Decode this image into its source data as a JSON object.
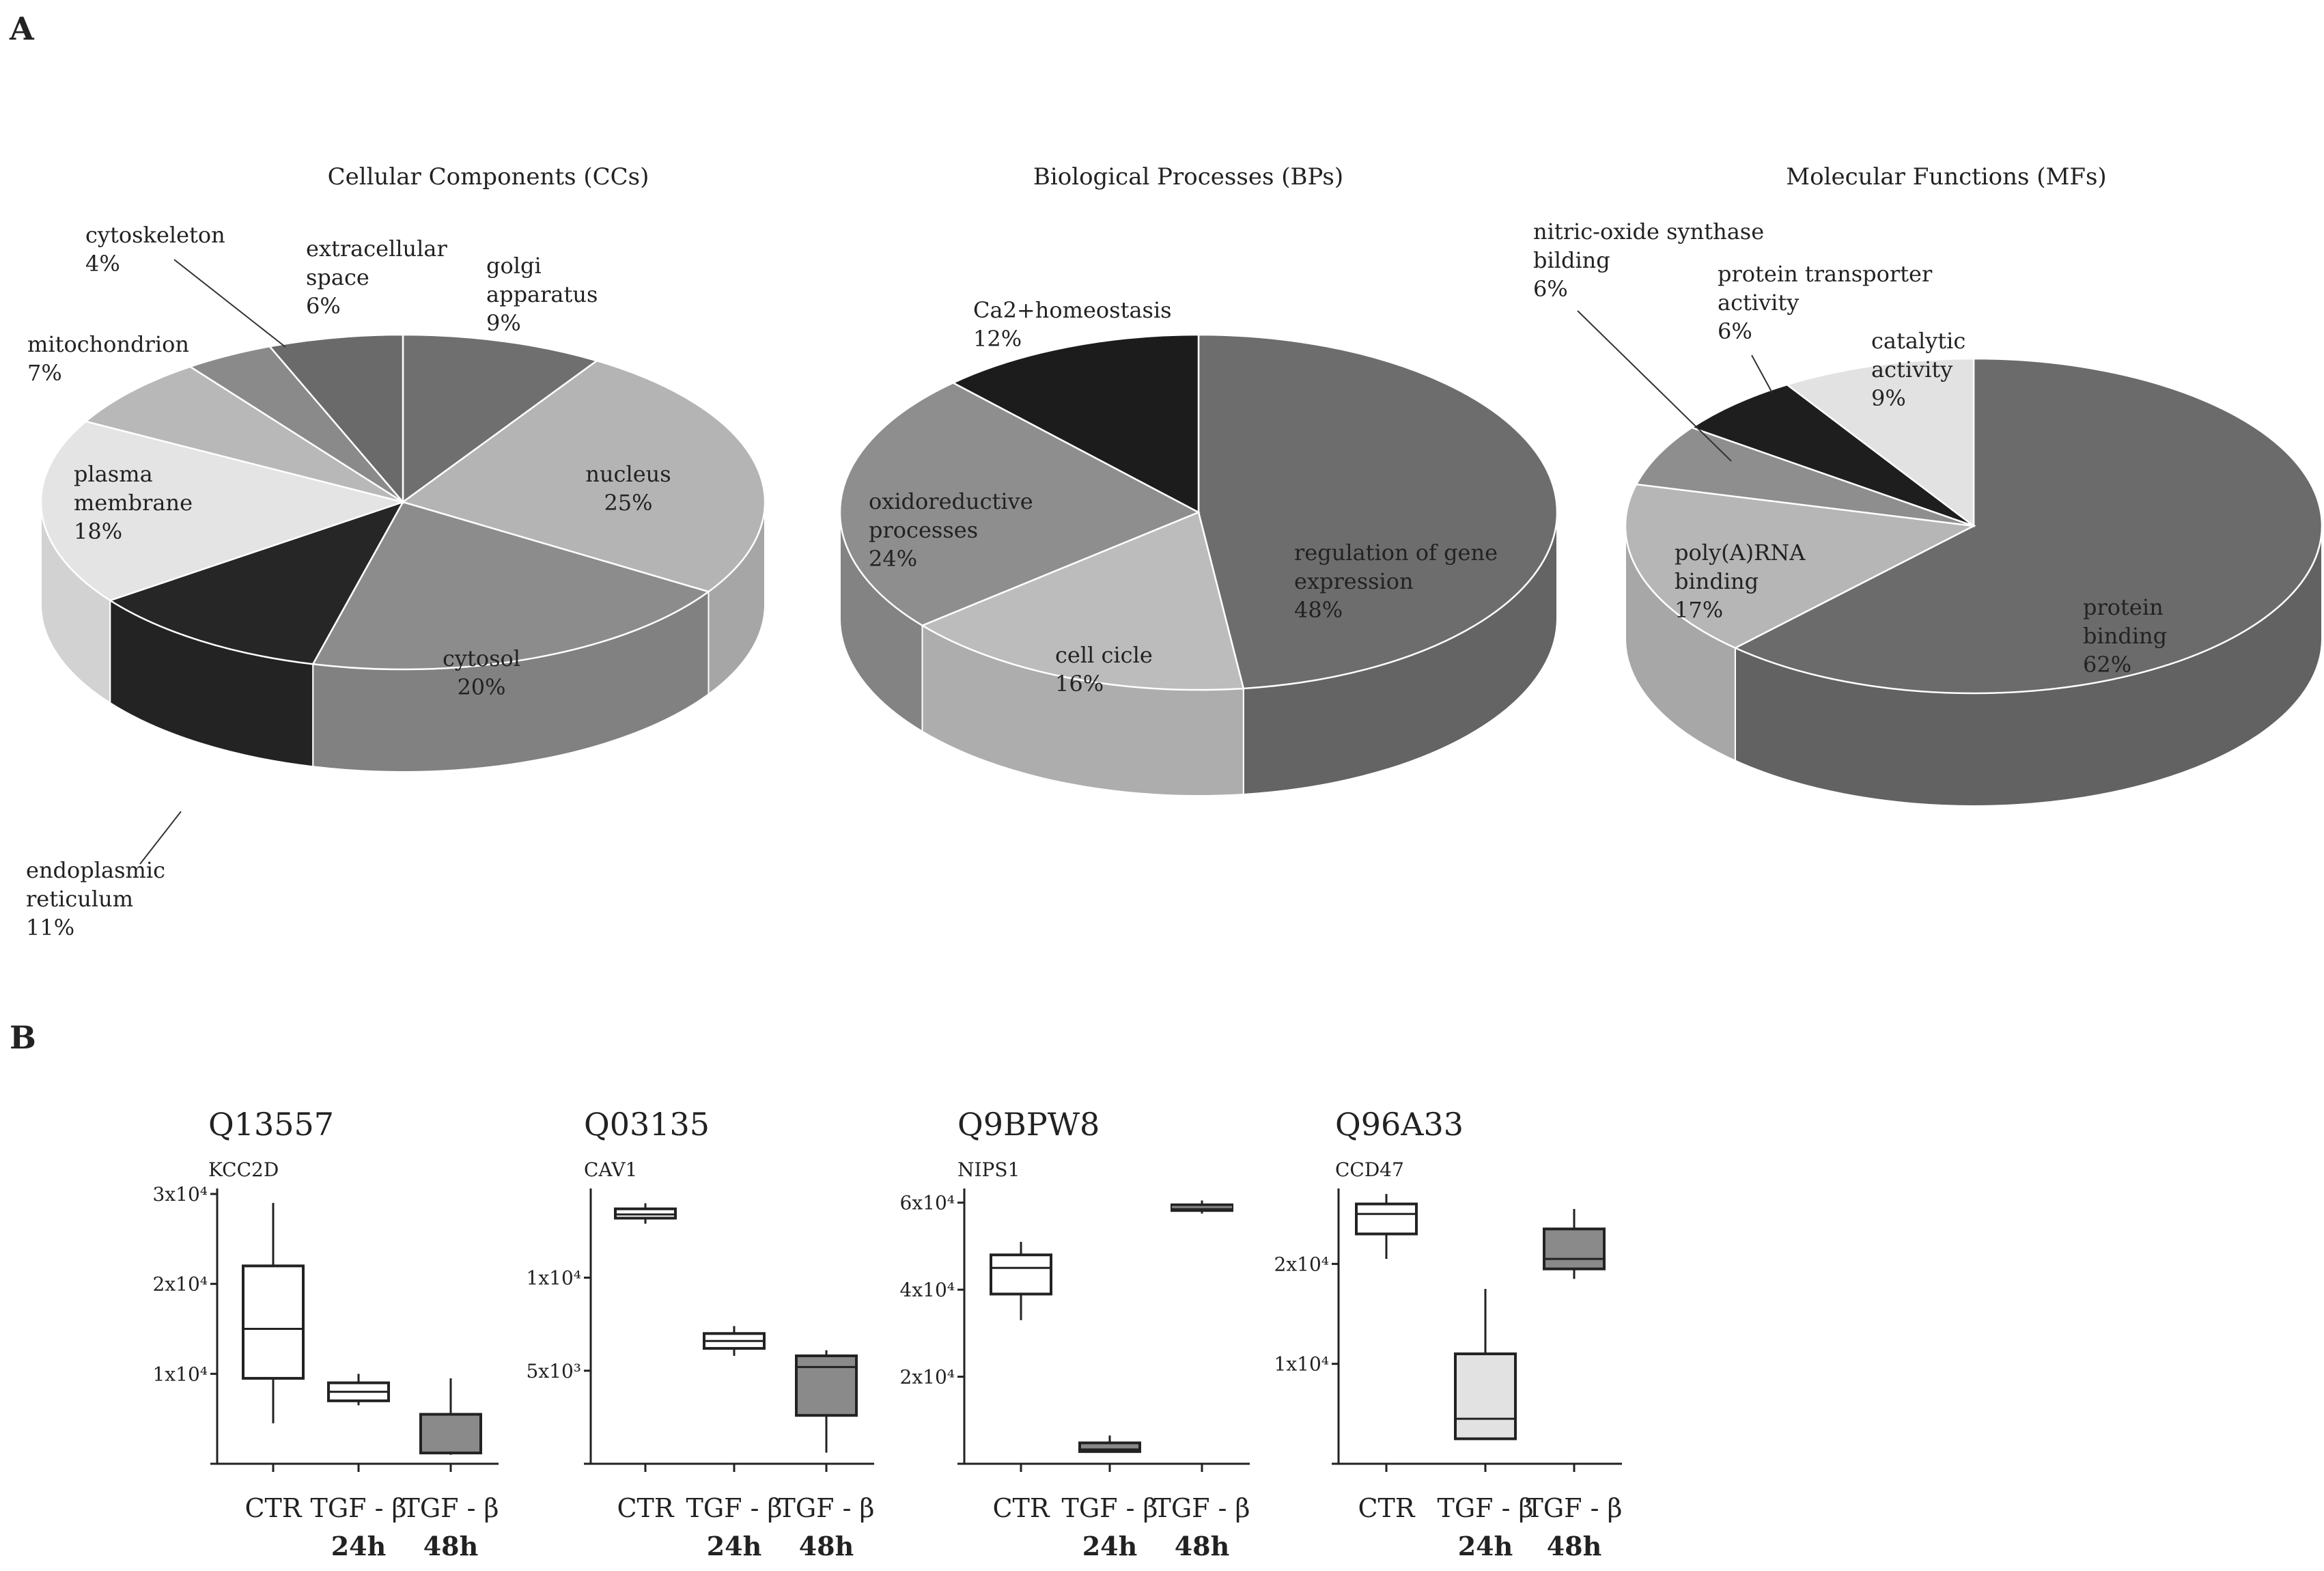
{
  "panel_labels": {
    "a": "A",
    "b": "B"
  },
  "chart_data": [
    {
      "type": "pie",
      "title": "Cellular Components (CCs)",
      "slices": [
        {
          "label": [
            "golgi",
            "apparatus"
          ],
          "pct": "9%",
          "value": 9,
          "color": "#6f6f6f"
        },
        {
          "label": [
            "nucleus"
          ],
          "pct": "25%",
          "value": 25,
          "color": "#b4b4b4"
        },
        {
          "label": [
            "cytosol"
          ],
          "pct": "20%",
          "value": 20,
          "color": "#8c8c8c"
        },
        {
          "label": [
            "endoplasmic",
            "reticulum"
          ],
          "pct": "11%",
          "value": 11,
          "color": "#262626"
        },
        {
          "label": [
            "plasma",
            "membrane"
          ],
          "pct": "18%",
          "value": 18,
          "color": "#e4e4e4"
        },
        {
          "label": [
            "mitochondrion"
          ],
          "pct": "7%",
          "value": 7,
          "color": "#b8b8b8"
        },
        {
          "label": [
            "cytoskeleton"
          ],
          "pct": "4%",
          "value": 4,
          "color": "#8a8a8a"
        },
        {
          "label": [
            "extracellular",
            "space"
          ],
          "pct": "6%",
          "value": 6,
          "color": "#6a6a6a"
        }
      ]
    },
    {
      "type": "pie",
      "title": "Biological Processes (BPs)",
      "slices": [
        {
          "label": [
            "regulation of gene",
            "expression"
          ],
          "pct": "48%",
          "value": 48,
          "color": "#6d6d6d"
        },
        {
          "label": [
            "cell cicle"
          ],
          "pct": "16%",
          "value": 16,
          "color": "#bcbcbc"
        },
        {
          "label": [
            "oxidoreductive",
            "processes"
          ],
          "pct": "24%",
          "value": 24,
          "color": "#8e8e8e"
        },
        {
          "label": [
            "Ca2+homeostasis"
          ],
          "pct": "12%",
          "value": 12,
          "color": "#1c1c1c"
        }
      ]
    },
    {
      "type": "pie",
      "title": "Molecular Functions (MFs)",
      "slices": [
        {
          "label": [
            "protein",
            "binding"
          ],
          "pct": "62%",
          "value": 62,
          "color": "#6b6b6b"
        },
        {
          "label": [
            "poly(A)RNA",
            "binding"
          ],
          "pct": "17%",
          "value": 17,
          "color": "#b6b6b6"
        },
        {
          "label": [
            "nitric-oxide synthase",
            "bilding"
          ],
          "pct": "6%",
          "value": 6,
          "color": "#8e8e8e"
        },
        {
          "label": [
            "protein transporter",
            "activity"
          ],
          "pct": "6%",
          "value": 6,
          "color": "#1e1e1e"
        },
        {
          "label": [
            "catalytic",
            "activity"
          ],
          "pct": "9%",
          "value": 9,
          "color": "#e2e2e2"
        }
      ]
    },
    {
      "type": "box",
      "title": "Q13557",
      "subtitle": "KCC2D",
      "ylim": [
        0,
        30000
      ],
      "yticks": [
        {
          "v": 10000,
          "label": "1x10⁴"
        },
        {
          "v": 20000,
          "label": "2x10⁴"
        },
        {
          "v": 30000,
          "label": "3x10⁴"
        }
      ],
      "categories": [
        [
          "CTR"
        ],
        [
          "TGF - β",
          "24h"
        ],
        [
          "TGF - β",
          "48h"
        ]
      ],
      "boxes": [
        {
          "min": 4500,
          "q1": 9500,
          "median": 15000,
          "q3": 22000,
          "max": 29000,
          "fill": "#ffffff"
        },
        {
          "min": 6500,
          "q1": 7000,
          "median": 8000,
          "q3": 9000,
          "max": 10000,
          "fill": "#ffffff"
        },
        {
          "min": 1000,
          "q1": 1200,
          "median": 1200,
          "q3": 5500,
          "max": 9500,
          "fill": "#8a8a8a"
        }
      ]
    },
    {
      "type": "box",
      "title": "Q03135",
      "subtitle": "CAV1",
      "ylim": [
        0,
        14500
      ],
      "yticks": [
        {
          "v": 5000,
          "label": "5x10³"
        },
        {
          "v": 10000,
          "label": "1x10⁴"
        }
      ],
      "categories": [
        [
          "CTR"
        ],
        [
          "TGF - β",
          "24h"
        ],
        [
          "TGF - β",
          "48h"
        ]
      ],
      "boxes": [
        {
          "min": 12900,
          "q1": 13200,
          "median": 13400,
          "q3": 13700,
          "max": 14000,
          "fill": "#ffffff"
        },
        {
          "min": 5800,
          "q1": 6200,
          "median": 6600,
          "q3": 7000,
          "max": 7400,
          "fill": "#ffffff"
        },
        {
          "min": 600,
          "q1": 2600,
          "median": 5200,
          "q3": 5800,
          "max": 6100,
          "fill": "#8a8a8a"
        }
      ]
    },
    {
      "type": "box",
      "title": "Q9BPW8",
      "subtitle": "NIPS1",
      "ylim": [
        0,
        62000
      ],
      "yticks": [
        {
          "v": 20000,
          "label": "2x10⁴"
        },
        {
          "v": 40000,
          "label": "4x10⁴"
        },
        {
          "v": 60000,
          "label": "6x10⁴"
        }
      ],
      "categories": [
        [
          "CTR"
        ],
        [
          "TGF - β",
          "24h"
        ],
        [
          "TGF - β",
          "48h"
        ]
      ],
      "boxes": [
        {
          "min": 33000,
          "q1": 39000,
          "median": 45000,
          "q3": 48000,
          "max": 51000,
          "fill": "#ffffff"
        },
        {
          "min": 2500,
          "q1": 2800,
          "median": 3300,
          "q3": 4800,
          "max": 6500,
          "fill": "#8a8a8a"
        },
        {
          "min": 57500,
          "q1": 58200,
          "median": 59000,
          "q3": 59500,
          "max": 60500,
          "fill": "#2a2a2a"
        }
      ]
    },
    {
      "type": "box",
      "title": "Q96A33",
      "subtitle": "CCD47",
      "ylim": [
        0,
        27000
      ],
      "yticks": [
        {
          "v": 10000,
          "label": "1x10⁴"
        },
        {
          "v": 20000,
          "label": "2x10⁴"
        }
      ],
      "categories": [
        [
          "CTR"
        ],
        [
          "TGF - β",
          "24h"
        ],
        [
          "TGF - β",
          "48h"
        ]
      ],
      "boxes": [
        {
          "min": 20500,
          "q1": 23000,
          "median": 25000,
          "q3": 26000,
          "max": 27000,
          "fill": "#ffffff"
        },
        {
          "min": 2500,
          "q1": 2500,
          "median": 4500,
          "q3": 11000,
          "max": 17500,
          "fill": "#e2e2e2"
        },
        {
          "min": 18500,
          "q1": 19500,
          "median": 20500,
          "q3": 23500,
          "max": 25500,
          "fill": "#8a8a8a"
        }
      ]
    }
  ]
}
